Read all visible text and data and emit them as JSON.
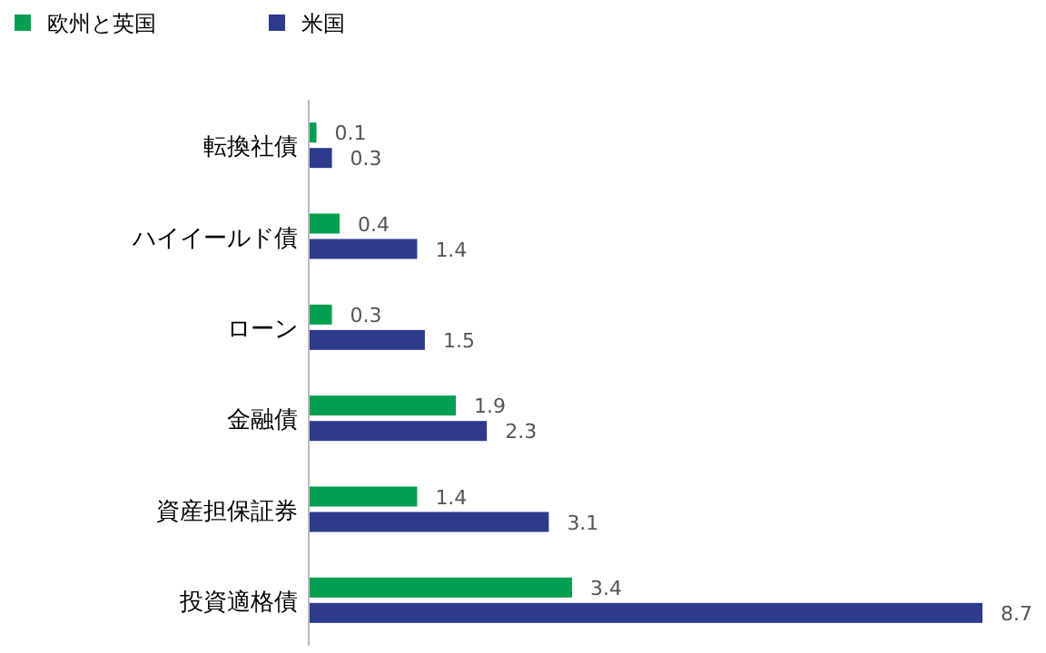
{
  "chart_data": {
    "type": "bar",
    "orientation": "horizontal",
    "categories": [
      "転換社債",
      "ハイイールド債",
      "ローン",
      "金融債",
      "資産担保証券",
      "投資適格債"
    ],
    "series": [
      {
        "name": "欧州と英国",
        "color": "#00a050",
        "values": [
          0.1,
          0.4,
          0.3,
          1.9,
          1.4,
          3.4
        ]
      },
      {
        "name": "米国",
        "color": "#2e3a8c",
        "values": [
          0.3,
          1.4,
          1.5,
          2.3,
          3.1,
          8.7
        ]
      }
    ],
    "data_labels": true,
    "legend": "top left",
    "tick_labels": "y"
  }
}
